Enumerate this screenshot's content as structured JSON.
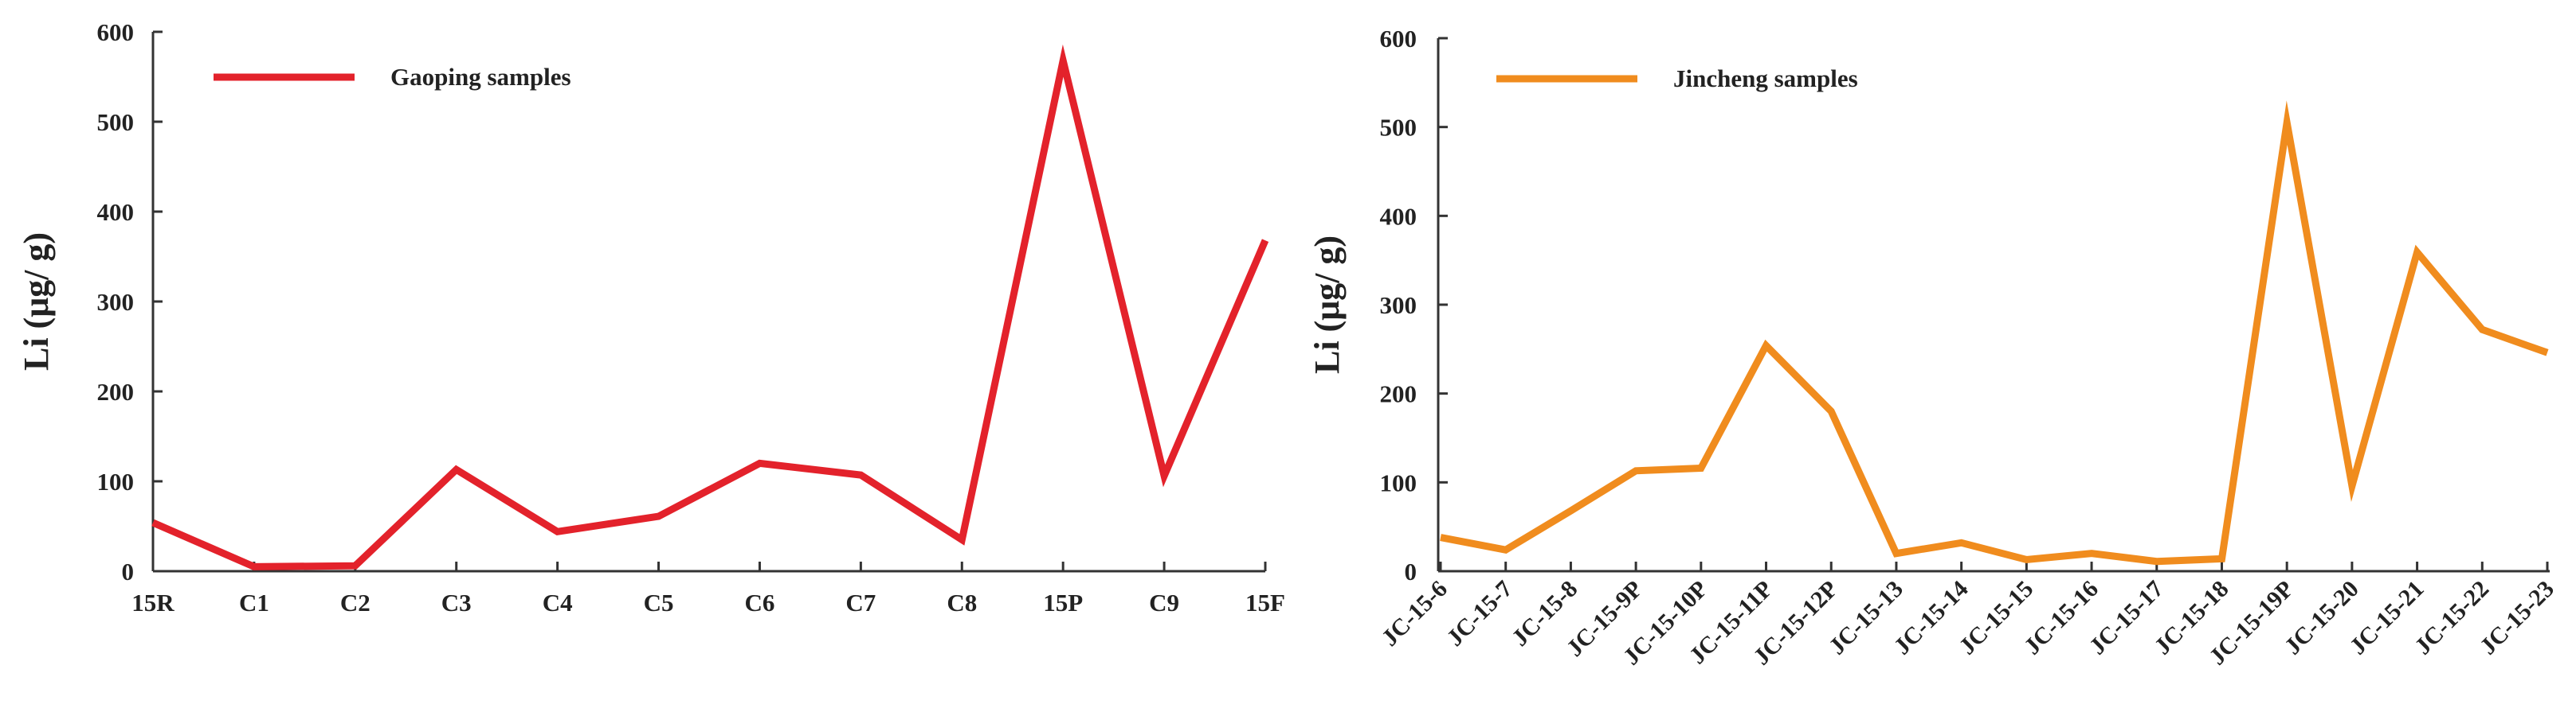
{
  "chart_data": [
    {
      "type": "line",
      "xlabel": "",
      "ylabel": "Li (μg/ g)",
      "ylim": [
        0,
        600
      ],
      "yticks": [
        0,
        100,
        200,
        300,
        400,
        500,
        600
      ],
      "categories": [
        "15R",
        "C1",
        "C2",
        "C3",
        "C4",
        "C5",
        "C6",
        "C7",
        "C8",
        "15P",
        "C9",
        "15F"
      ],
      "series": [
        {
          "name": "Gaoping samples",
          "color": "#e3222b",
          "values": [
            54,
            5,
            6,
            113,
            44,
            61,
            120,
            107,
            35,
            568,
            106,
            368
          ]
        }
      ],
      "legend_position": "top-left",
      "grid": false
    },
    {
      "type": "line",
      "xlabel": "",
      "ylabel": "Li (μg/ g)",
      "ylim": [
        0,
        600
      ],
      "yticks": [
        0,
        100,
        200,
        300,
        400,
        500,
        600
      ],
      "categories": [
        "JC-15-6",
        "JC-15-7",
        "JC-15-8",
        "JC-15-9P",
        "JC-15-10P",
        "JC-15-11P",
        "JC-15-12P",
        "JC-15-13",
        "JC-15-14",
        "JC-15-15",
        "JC-15-16",
        "JC-15-17",
        "JC-15-18",
        "JC-15-19P",
        "JC-15-20",
        "JC-15-21",
        "JC-15-22",
        "JC-15-23"
      ],
      "series": [
        {
          "name": "Jincheng samples",
          "color": "#f08c1e",
          "values": [
            38,
            24,
            68,
            113,
            116,
            254,
            180,
            20,
            32,
            13,
            20,
            11,
            14,
            505,
            96,
            359,
            272,
            246
          ]
        }
      ],
      "legend_position": "top-left",
      "grid": false
    }
  ]
}
